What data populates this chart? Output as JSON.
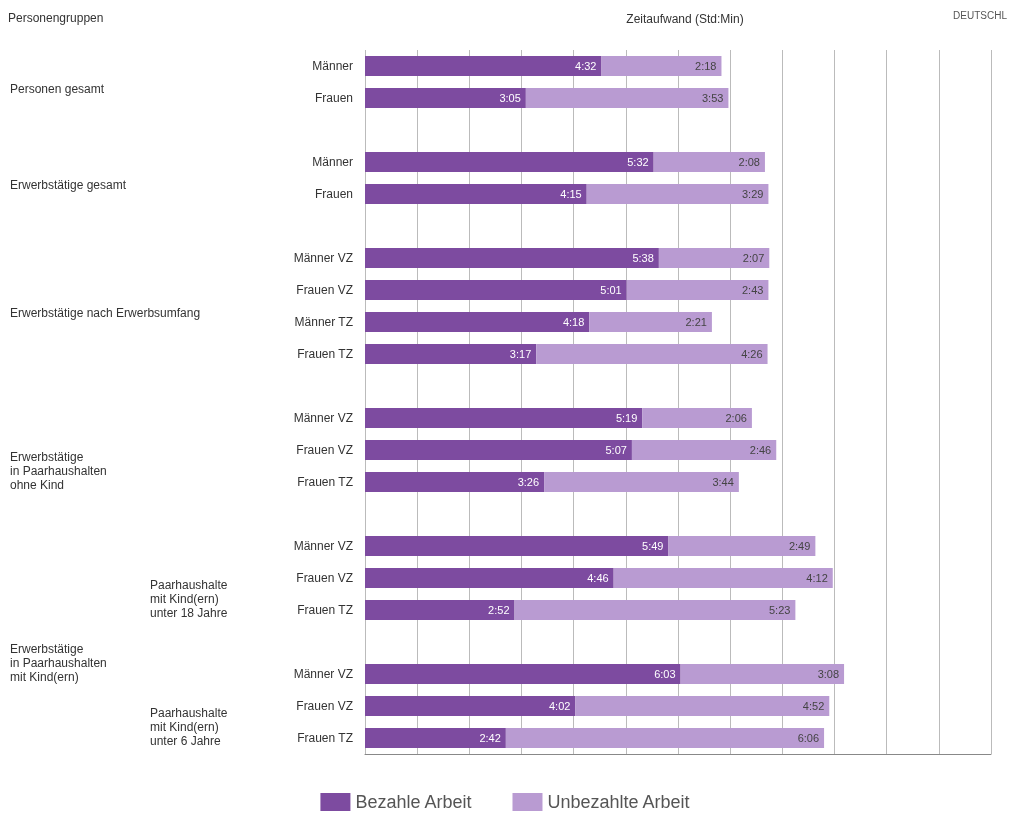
{
  "chart_data": {
    "type": "bar",
    "orientation": "horizontal",
    "stacked": true,
    "xlabel": "Zeitaufwand (Std:Min)",
    "categories": [
      "Männer",
      "Frauen",
      null,
      "Männer",
      "Frauen",
      null,
      "Männer VZ",
      "Frauen VZ",
      "Männer TZ",
      "Frauen TZ",
      null,
      "Männer VZ",
      "Frauen VZ",
      "Frauen TZ",
      null,
      "Männer VZ",
      "Frauen VZ",
      "Frauen TZ",
      null,
      "Männer VZ",
      "Frauen VZ",
      "Frauen TZ"
    ],
    "series": [
      {
        "name": "Bezahle Arbeit",
        "color": "#7d4ba0",
        "values": [
          272,
          185,
          null,
          332,
          255,
          null,
          338,
          301,
          258,
          197,
          null,
          319,
          307,
          206,
          null,
          349,
          286,
          172,
          null,
          363,
          242,
          162
        ],
        "value_labels": [
          "4:32",
          "3:05",
          null,
          "5:32",
          "4:15",
          null,
          "5:38",
          "5:01",
          "4:18",
          "3:17",
          null,
          "5:19",
          "5:07",
          "3:26",
          null,
          "5:49",
          "4:46",
          "2:52",
          null,
          "6:03",
          "4:02",
          "2:42"
        ]
      },
      {
        "name": "Unbezahlte Arbeit",
        "color": "#b99bd2",
        "values": [
          138,
          233,
          null,
          128,
          209,
          null,
          127,
          163,
          141,
          266,
          null,
          126,
          166,
          224,
          null,
          169,
          252,
          323,
          null,
          188,
          292,
          366
        ],
        "value_labels": [
          "2:18",
          "3:53",
          null,
          "2:08",
          "3:29",
          null,
          "2:07",
          "2:43",
          "2:21",
          "4:26",
          null,
          "2:06",
          "2:46",
          "3:44",
          null,
          "2:49",
          "4:12",
          "5:23",
          null,
          "3:08",
          "4:52",
          "6:06"
        ]
      }
    ],
    "xlim": [
      0,
      720
    ],
    "xticks": [
      {
        "value": 0,
        "label": null
      },
      {
        "value": 60,
        "label": null
      },
      {
        "value": 120,
        "label": null
      },
      {
        "value": 180,
        "label": null
      },
      {
        "value": 240,
        "label": null
      },
      {
        "value": 300,
        "label": null
      },
      {
        "value": 360,
        "label": null
      },
      {
        "value": 420,
        "label": null
      },
      {
        "value": 480,
        "label": null
      },
      {
        "value": 540,
        "label": null
      },
      {
        "value": 600,
        "label": null
      },
      {
        "value": 660,
        "label": null
      },
      {
        "value": 720,
        "label": null
      }
    ],
    "tick_labels": "y",
    "grid": "x",
    "legend": "bottom",
    "annotations": [
      "Personen gesamt",
      "Erwerbstätige gesamt",
      "Erwerbstätige nach Erwerbsumfang",
      "Erwerbstätige\nin Paarhaushalten\nohne Kind",
      "Erwerbstätige\nin Paarhaushalten\nmit Kind(ern)",
      "Paarhaushalte\nmit Kind(ern)\nunter 18 Jahre",
      "Paarhaushalte\nmit Kind(ern)\nunter 6 Jahre",
      "Personengruppen",
      "DEUTSCHL"
    ]
  }
}
